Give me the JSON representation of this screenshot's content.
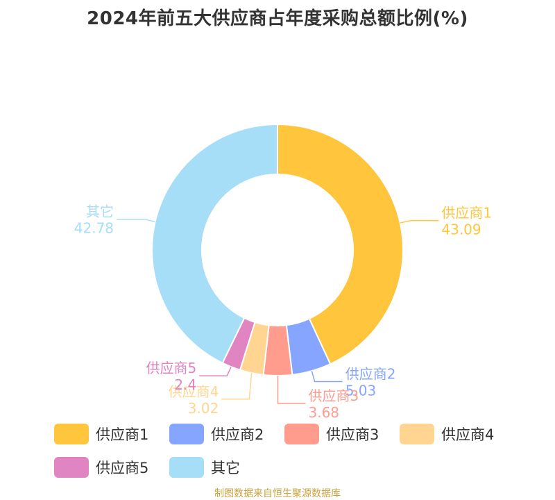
{
  "chart_data": {
    "type": "pie",
    "title": "2024年前五大供应商占年度采购总额比例(%)",
    "categories": [
      "供应商1",
      "供应商2",
      "供应商3",
      "供应商4",
      "供应商5",
      "其它"
    ],
    "values": [
      43.09,
      5.03,
      3.68,
      3.02,
      2.4,
      42.78
    ],
    "value_labels": [
      "43.09",
      "5.03",
      "3.68",
      "3.02",
      "2.4",
      "42.78"
    ],
    "colors": [
      "#ffc53d",
      "#85a5ff",
      "#ff9c8e",
      "#ffd591",
      "#e085c2",
      "#a6ddf7"
    ],
    "legend_position": "bottom"
  },
  "source_note": "制图数据来自恒生聚源数据库"
}
